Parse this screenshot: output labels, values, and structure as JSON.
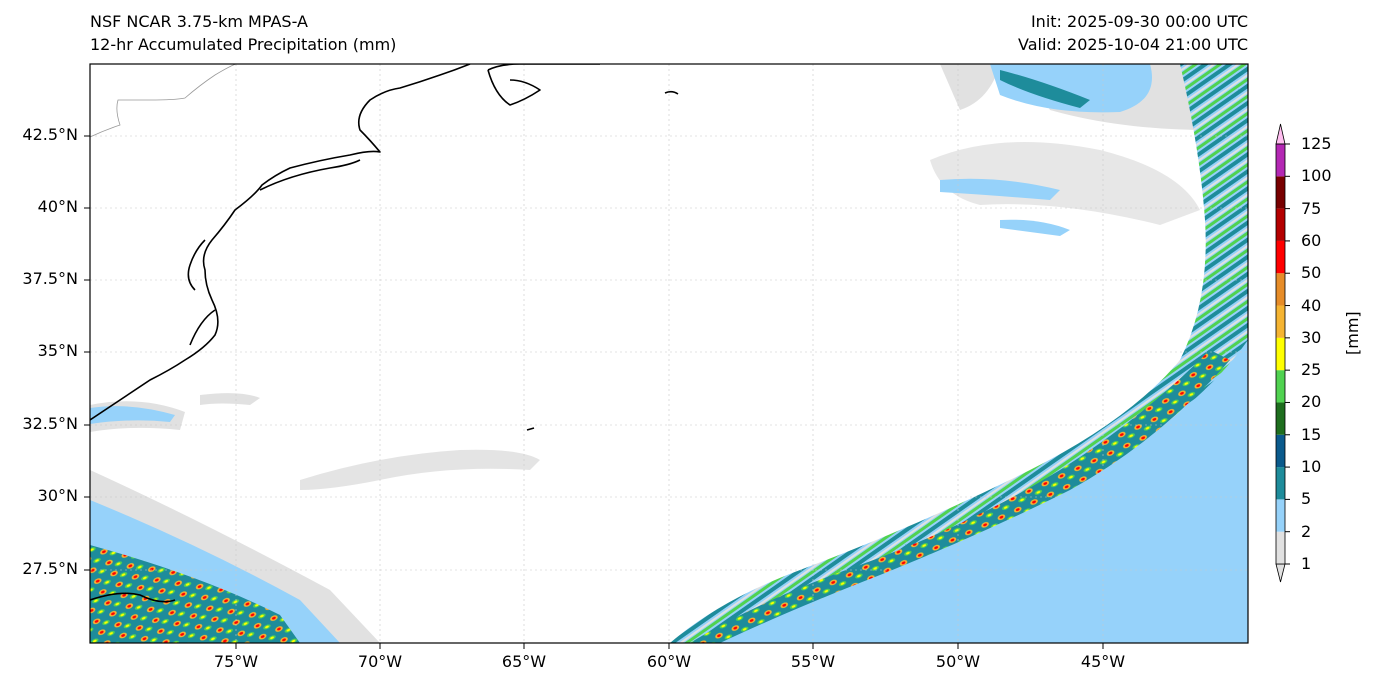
{
  "header": {
    "model": "NSF NCAR 3.75-km MPAS-A",
    "field": "12-hr Accumulated Precipitation (mm)",
    "init": "Init: 2025-09-30 00:00 UTC",
    "valid": "Valid: 2025-10-04 21:00 UTC"
  },
  "map": {
    "region": "Western North Atlantic",
    "lat_range": [
      25,
      44.8
    ],
    "lon_range": [
      -80,
      -40
    ],
    "lat_ticks": [
      "42.5°N",
      "40°N",
      "37.5°N",
      "35°N",
      "32.5°N",
      "30°N",
      "27.5°N"
    ],
    "lon_ticks": [
      "75°W",
      "70°W",
      "65°W",
      "60°W",
      "55°W",
      "50°W",
      "45°W"
    ],
    "gridlines": true
  },
  "colorbar": {
    "units": "[mm]",
    "levels": [
      "1",
      "2",
      "5",
      "10",
      "15",
      "20",
      "25",
      "30",
      "40",
      "50",
      "60",
      "75",
      "100",
      "125"
    ],
    "colors": [
      "#e1e1e1",
      "#96d2fa",
      "#1e8c9b",
      "#0a5a8c",
      "#1e6e1e",
      "#50d250",
      "#ffff00",
      "#f5b432",
      "#e68c28",
      "#ff0000",
      "#b40000",
      "#780000",
      "#b428b4",
      "#ffbef0"
    ],
    "extend": "both"
  }
}
